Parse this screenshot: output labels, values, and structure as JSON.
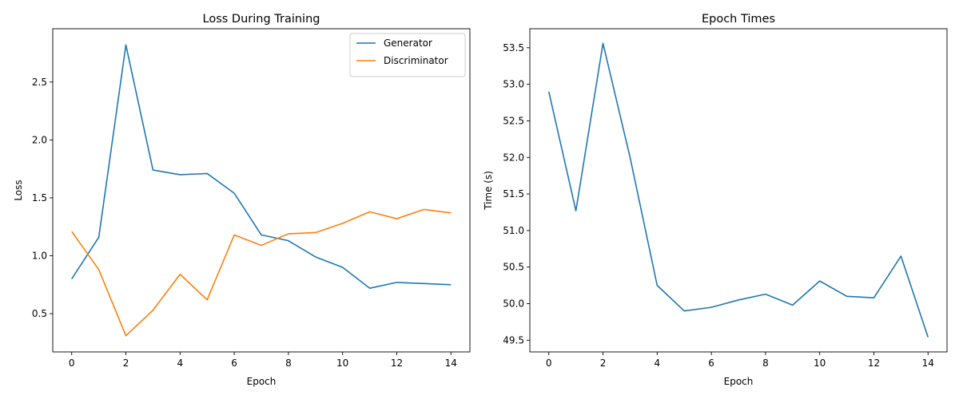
{
  "chart_data": [
    {
      "type": "line",
      "title": "Loss During Training",
      "xlabel": "Epoch",
      "ylabel": "Loss",
      "xlim": [
        -0.7,
        14.7
      ],
      "ylim": [
        0.17,
        2.96
      ],
      "xticks": [
        0,
        2,
        4,
        6,
        8,
        10,
        12,
        14
      ],
      "yticks": [
        0.5,
        1.0,
        1.5,
        2.0,
        2.5
      ],
      "grid": false,
      "legend_position": "top-right",
      "x": [
        0,
        1,
        2,
        3,
        4,
        5,
        6,
        7,
        8,
        9,
        10,
        11,
        12,
        13,
        14
      ],
      "series": [
        {
          "name": "Generator",
          "color": "#1f77b4",
          "values": [
            0.8,
            1.16,
            2.82,
            1.74,
            1.7,
            1.71,
            1.54,
            1.18,
            1.13,
            0.99,
            0.9,
            0.72,
            0.77,
            0.76,
            0.75
          ]
        },
        {
          "name": "Discriminator",
          "color": "#ff7f0e",
          "values": [
            1.21,
            0.88,
            0.31,
            0.53,
            0.84,
            0.62,
            1.18,
            1.09,
            1.19,
            1.2,
            1.28,
            1.38,
            1.32,
            1.4,
            1.37
          ]
        }
      ]
    },
    {
      "type": "line",
      "title": "Epoch Times",
      "xlabel": "Epoch",
      "ylabel": "Time (s)",
      "xlim": [
        -0.7,
        14.7
      ],
      "ylim": [
        49.34,
        53.76
      ],
      "xticks": [
        0,
        2,
        4,
        6,
        8,
        10,
        12,
        14
      ],
      "yticks": [
        49.5,
        50.0,
        50.5,
        51.0,
        51.5,
        52.0,
        52.5,
        53.0,
        53.5
      ],
      "grid": false,
      "x": [
        0,
        1,
        2,
        3,
        4,
        5,
        6,
        7,
        8,
        9,
        10,
        11,
        12,
        13,
        14
      ],
      "series": [
        {
          "color": "#1f77b4",
          "values": [
            52.9,
            51.27,
            53.56,
            52.0,
            50.25,
            49.9,
            49.95,
            50.05,
            50.13,
            49.98,
            50.31,
            50.1,
            50.08,
            50.65,
            49.54
          ]
        }
      ]
    }
  ]
}
